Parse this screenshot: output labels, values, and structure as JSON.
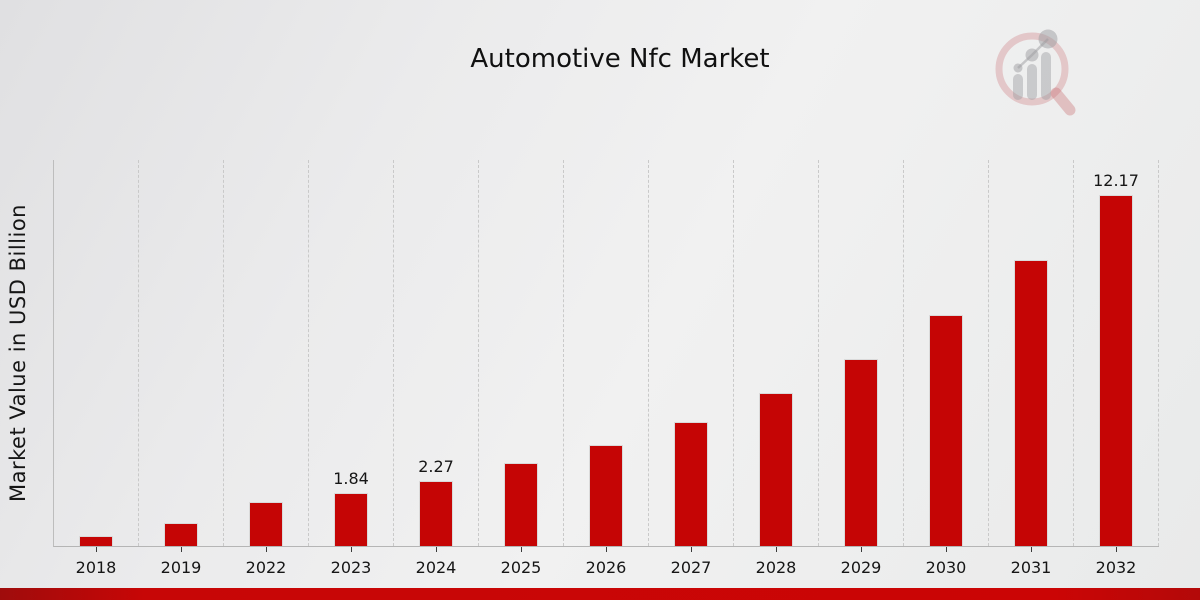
{
  "title": "Automotive Nfc Market",
  "y_axis": {
    "label": "Market Value in USD Billion"
  },
  "branding": {
    "logo": "market-research-future-watermark"
  },
  "colors": {
    "bar": "#c50505",
    "footer_bar": "#c70606",
    "background": "#ececec",
    "gridline": "#c9c9c9",
    "text": "#111111"
  },
  "chart_data": {
    "type": "bar",
    "title": "Automotive Nfc Market",
    "xlabel": "",
    "ylabel": "Market Value in USD Billion",
    "categories": [
      "2018",
      "2019",
      "2022",
      "2023",
      "2024",
      "2025",
      "2026",
      "2027",
      "2028",
      "2029",
      "2030",
      "2031",
      "2032"
    ],
    "values": [
      0.36,
      0.81,
      1.51,
      1.84,
      2.27,
      2.87,
      3.5,
      4.29,
      5.29,
      6.48,
      8.01,
      9.92,
      12.17
    ],
    "data_labels": [
      "",
      "",
      "",
      "1.84",
      "2.27",
      "",
      "",
      "",
      "",
      "",
      "",
      "",
      "12.17"
    ],
    "ylim": [
      0,
      13.4
    ],
    "grid": "vertical-dashed",
    "legend": "none",
    "bar_color": "#c50505"
  }
}
